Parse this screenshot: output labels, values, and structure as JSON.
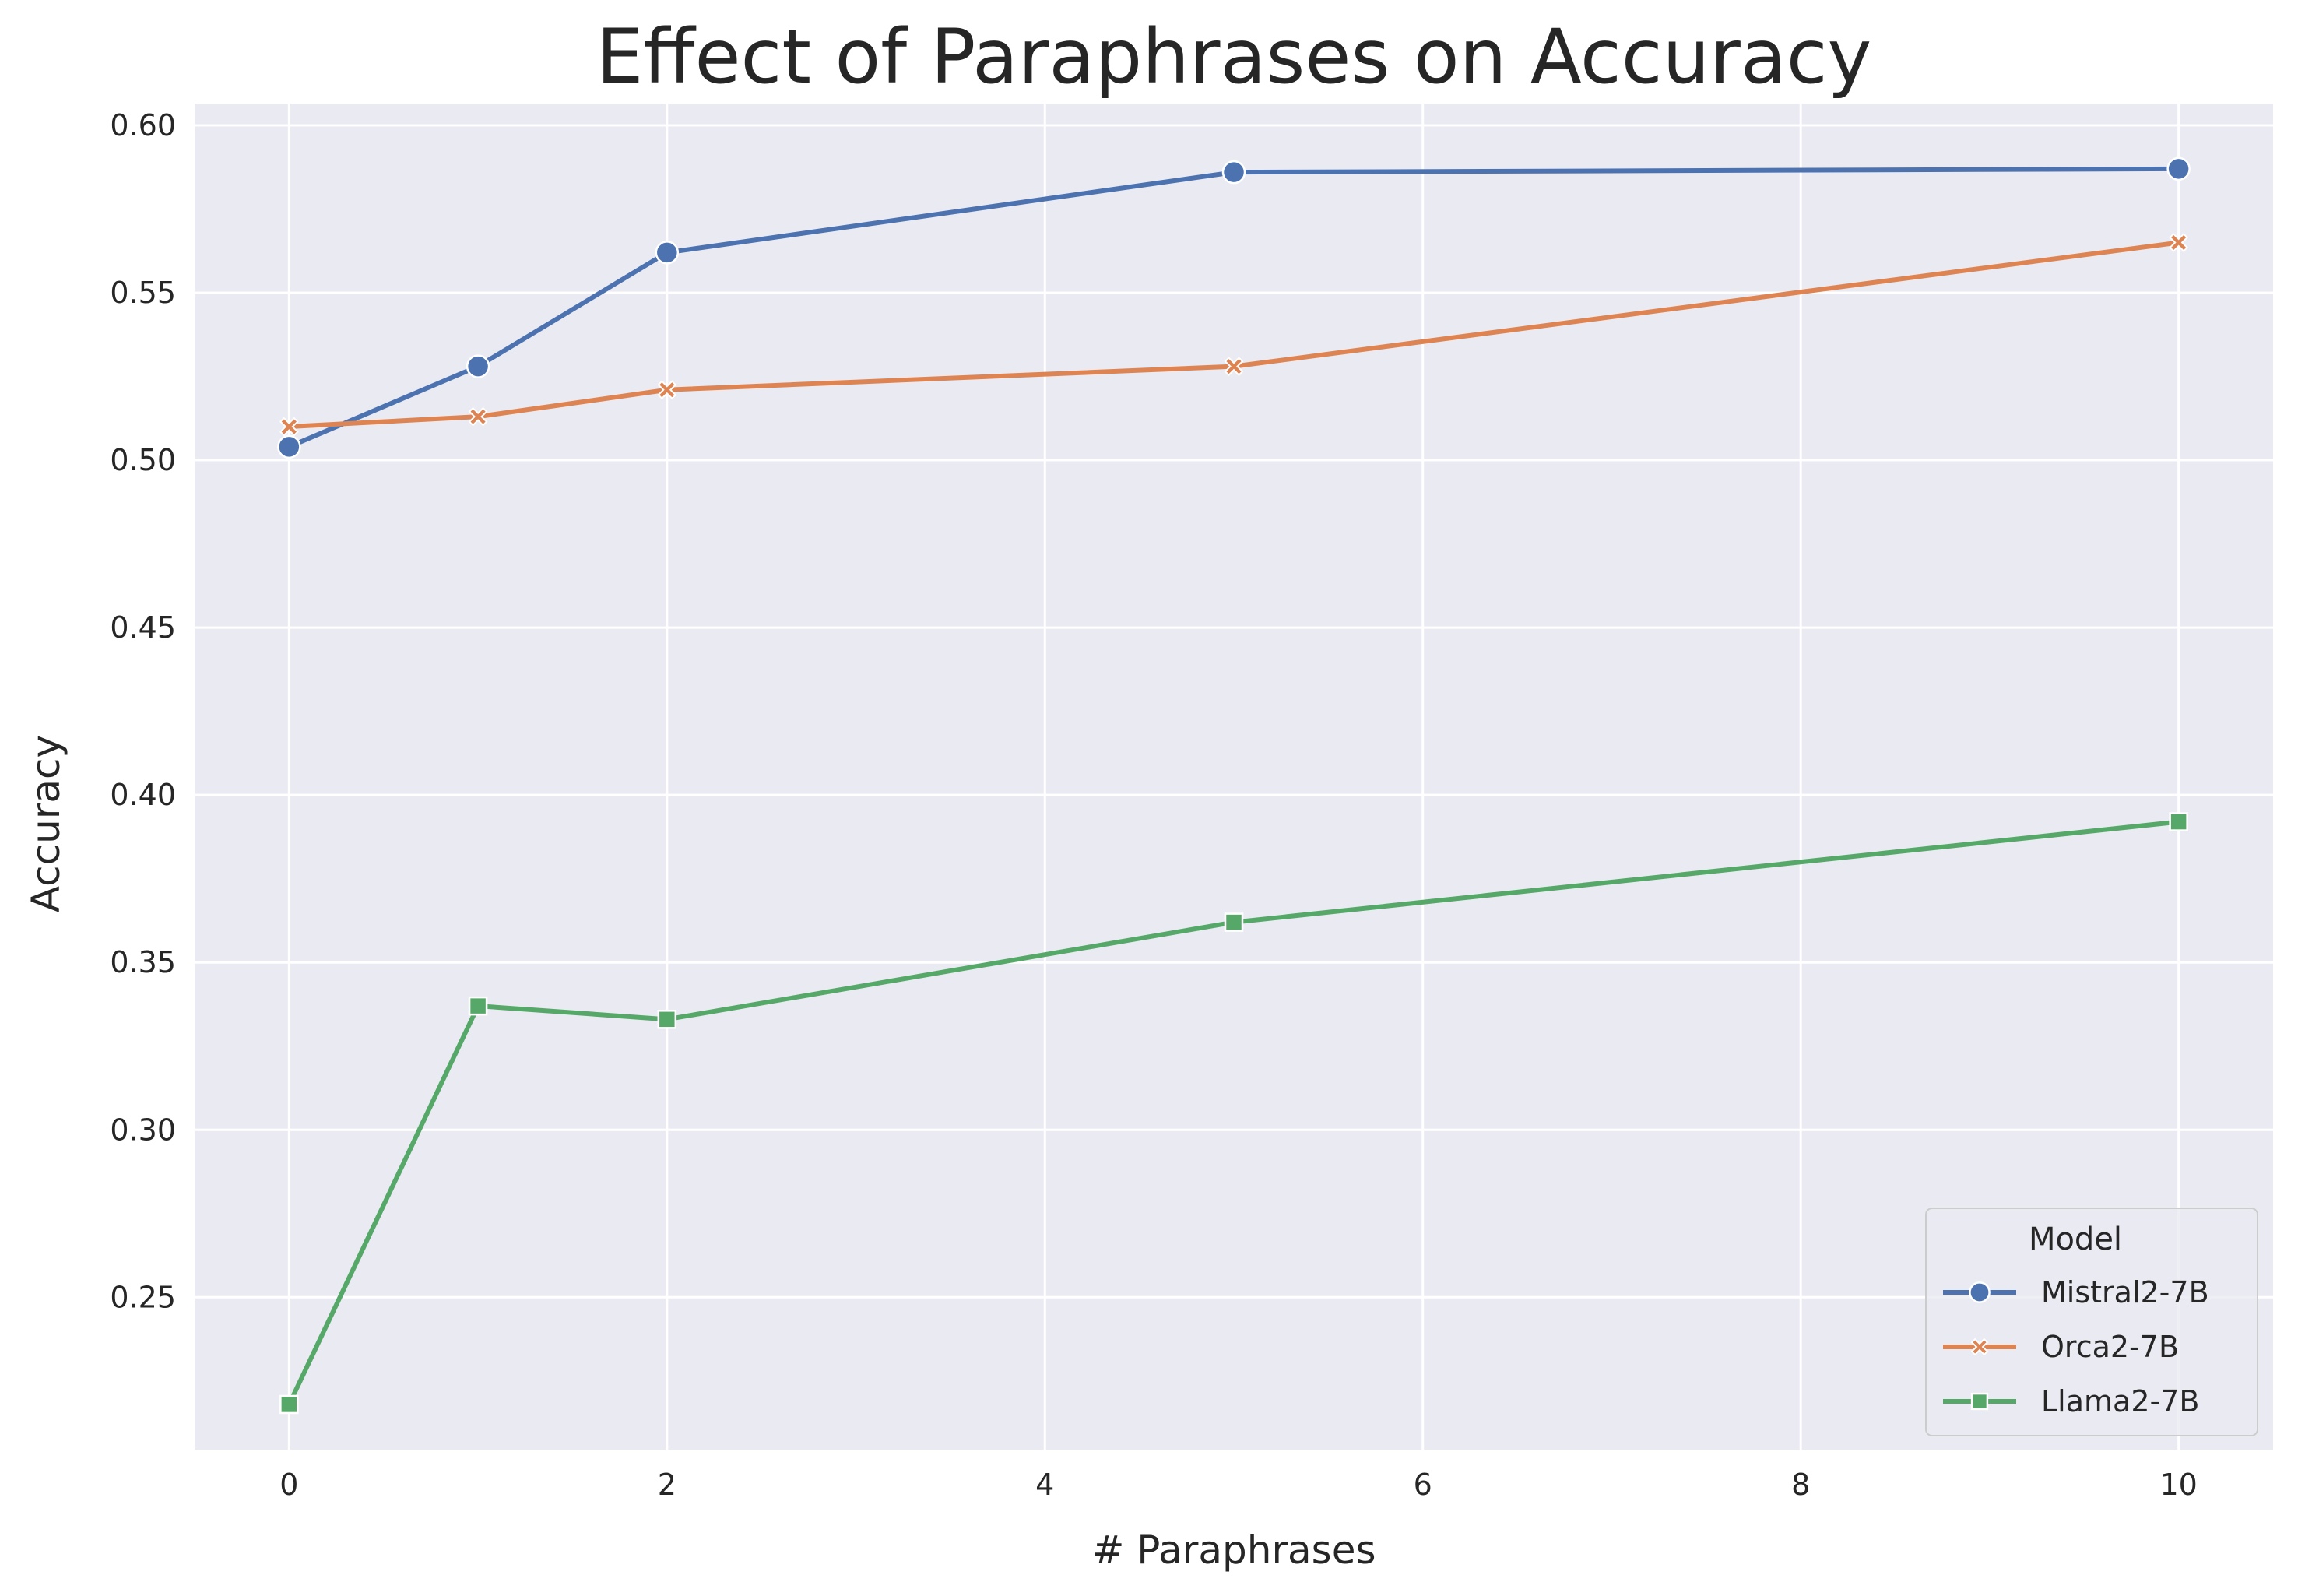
{
  "chart_data": {
    "type": "line",
    "title": "Effect of Paraphrases on Accuracy",
    "xlabel": "# Paraphrases",
    "ylabel": "Accuracy",
    "xlim": [
      -0.5,
      10.5
    ],
    "ylim": [
      0.2045,
      0.6065
    ],
    "xticks": [
      0,
      2,
      4,
      6,
      8,
      10
    ],
    "yticks": [
      0.25,
      0.3,
      0.35,
      0.4,
      0.45,
      0.5,
      0.55,
      0.6
    ],
    "grid": true,
    "legend": {
      "title": "Model",
      "position": "lower-right"
    },
    "series": [
      {
        "name": "Mistral2-7B",
        "color": "#4c72b0",
        "marker": "circle",
        "x": [
          0,
          1,
          2,
          5,
          10
        ],
        "y": [
          0.504,
          0.528,
          0.562,
          0.586,
          0.587
        ]
      },
      {
        "name": "Orca2-7B",
        "color": "#dd8452",
        "marker": "x",
        "x": [
          0,
          1,
          2,
          5,
          10
        ],
        "y": [
          0.51,
          0.513,
          0.521,
          0.528,
          0.565
        ]
      },
      {
        "name": "Llama2-7B",
        "color": "#55a868",
        "marker": "square",
        "x": [
          0,
          1,
          2,
          5,
          10
        ],
        "y": [
          0.218,
          0.337,
          0.333,
          0.362,
          0.392
        ]
      }
    ]
  }
}
